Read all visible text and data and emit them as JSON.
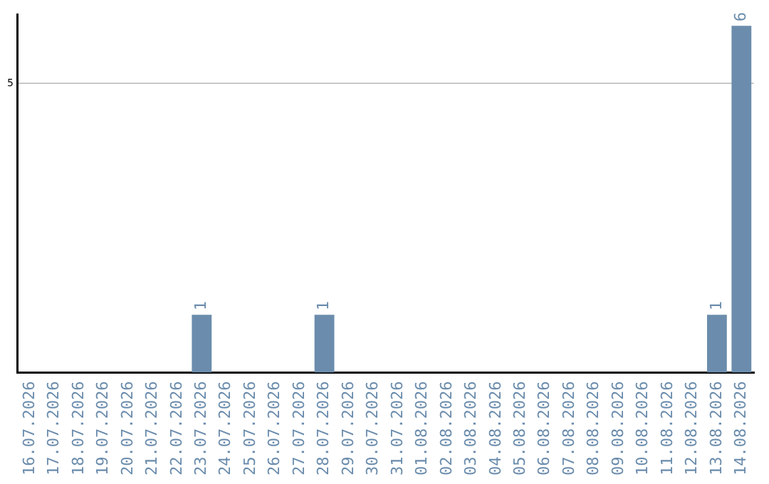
{
  "chart_data": {
    "type": "bar",
    "categories": [
      "16.07.2026",
      "17.07.2026",
      "18.07.2026",
      "19.07.2026",
      "20.07.2026",
      "21.07.2026",
      "22.07.2026",
      "23.07.2026",
      "24.07.2026",
      "25.07.2026",
      "26.07.2026",
      "27.07.2026",
      "28.07.2026",
      "29.07.2026",
      "30.07.2026",
      "31.07.2026",
      "01.08.2026",
      "02.08.2026",
      "03.08.2026",
      "04.08.2026",
      "05.08.2026",
      "06.08.2026",
      "07.08.2026",
      "08.08.2026",
      "09.08.2026",
      "10.08.2026",
      "11.08.2026",
      "12.08.2026",
      "13.08.2026",
      "14.08.2026"
    ],
    "values": [
      0,
      0,
      0,
      0,
      0,
      0,
      0,
      1,
      0,
      0,
      0,
      0,
      1,
      0,
      0,
      0,
      0,
      0,
      0,
      0,
      0,
      0,
      0,
      0,
      0,
      0,
      0,
      0,
      1,
      6
    ],
    "value_labels": [
      null,
      null,
      null,
      null,
      null,
      null,
      null,
      "1",
      null,
      null,
      null,
      null,
      "1",
      null,
      null,
      null,
      null,
      null,
      null,
      null,
      null,
      null,
      null,
      null,
      null,
      null,
      null,
      null,
      "1",
      "6"
    ],
    "color": "#6b8cac",
    "ylim": [
      0,
      6.2
    ],
    "yticks": [
      5
    ],
    "grid": "y",
    "legend": false
  }
}
